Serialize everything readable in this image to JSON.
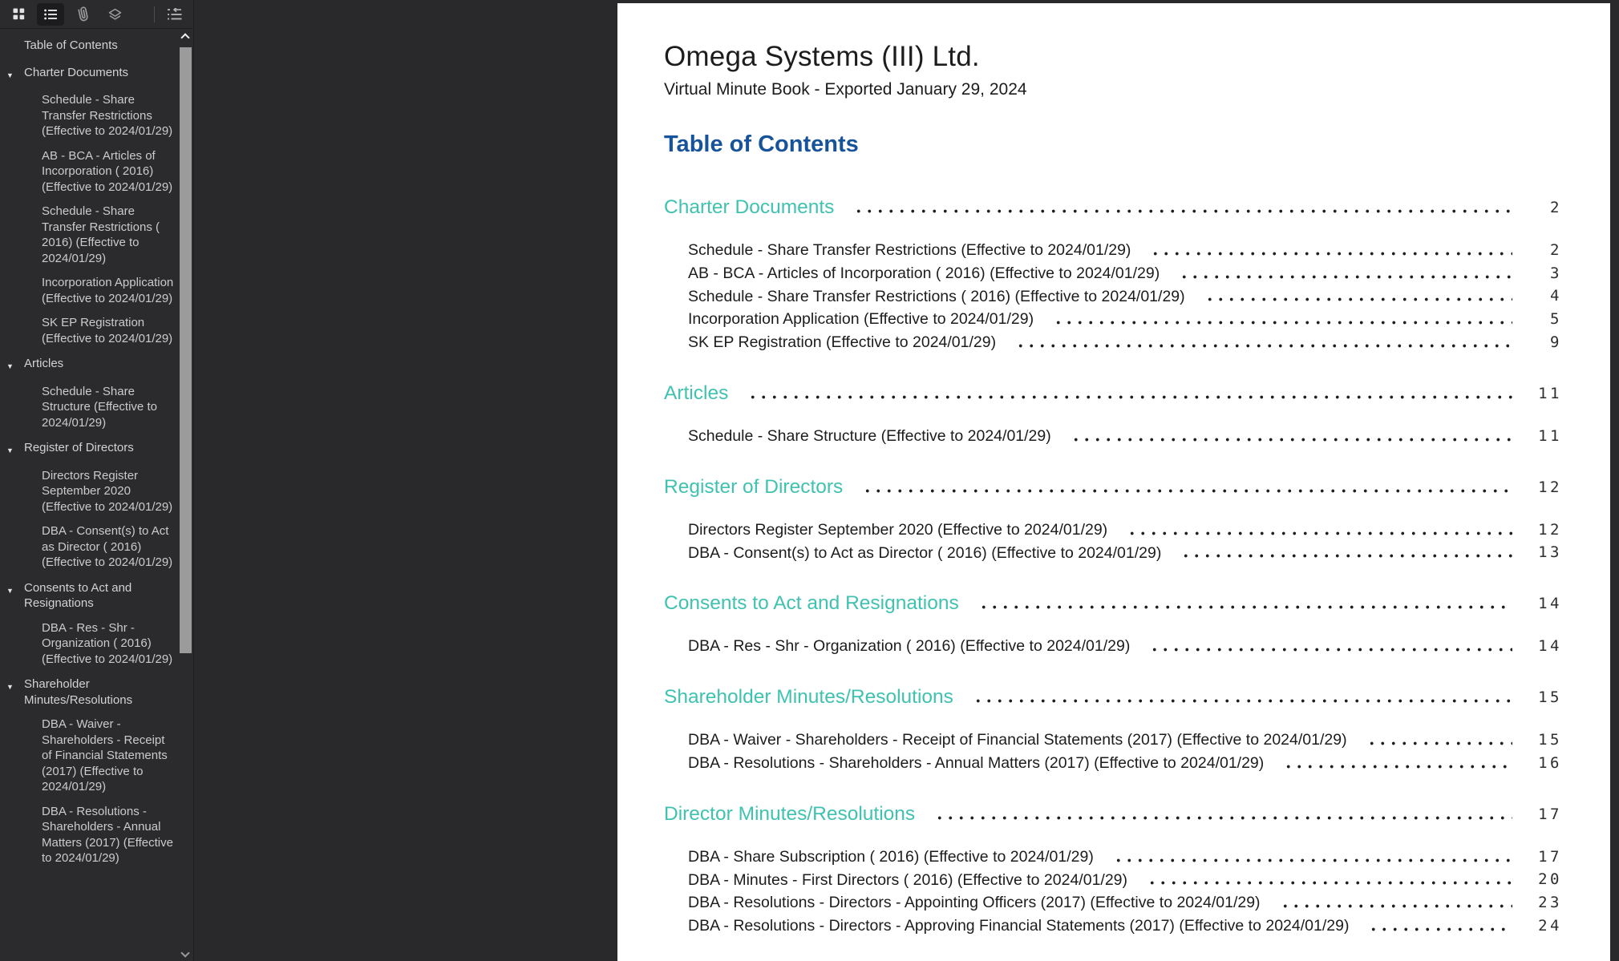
{
  "toolbar": {
    "icons": [
      {
        "name": "thumbnails-grid-icon"
      },
      {
        "name": "table-of-contents-icon",
        "active": true
      },
      {
        "name": "attachments-paperclip-icon"
      },
      {
        "name": "layers-icon"
      },
      {
        "name": "collapse-panel-icon"
      }
    ]
  },
  "sidebar": {
    "root": "Table of Contents",
    "sections": [
      {
        "label": "Charter Documents",
        "children": [
          "Schedule - Share Transfer Restrictions (Effective to 2024/01/29)",
          "AB - BCA - Articles of Incorporation ( 2016) (Effective to 2024/01/29)",
          "Schedule - Share Transfer Restrictions ( 2016) (Effective to 2024/01/29)",
          "Incorporation Application (Effective to 2024/01/29)",
          "SK EP Registration (Effective to 2024/01/29)"
        ]
      },
      {
        "label": "Articles",
        "children": [
          "Schedule - Share Structure (Effective to 2024/01/29)"
        ]
      },
      {
        "label": "Register of Directors",
        "children": [
          "Directors Register September 2020 (Effective to 2024/01/29)",
          "DBA - Consent(s) to Act as Director ( 2016) (Effective to 2024/01/29)"
        ]
      },
      {
        "label": "Consents to Act and Resignations",
        "children": [
          "DBA - Res - Shr - Organization ( 2016) (Effective to 2024/01/29)"
        ]
      },
      {
        "label": "Shareholder Minutes/Resolutions",
        "children": [
          "DBA - Waiver - Shareholders - Receipt of Financial Statements (2017) (Effective to 2024/01/29)",
          "DBA - Resolutions - Shareholders - Annual Matters (2017) (Effective to 2024/01/29)"
        ]
      }
    ]
  },
  "document": {
    "title": "Omega Systems (III) Ltd.",
    "subtitle": "Virtual Minute Book - Exported January 29, 2024",
    "toc_heading": "Table of Contents",
    "sections": [
      {
        "label": "Charter Documents",
        "page": "2",
        "entries": [
          {
            "label": "Schedule - Share Transfer Restrictions (Effective to 2024/01/29)",
            "page": "2"
          },
          {
            "label": "AB - BCA - Articles of Incorporation ( 2016) (Effective to 2024/01/29)",
            "page": "3"
          },
          {
            "label": "Schedule - Share Transfer Restrictions ( 2016) (Effective to 2024/01/29)",
            "page": "4"
          },
          {
            "label": "Incorporation Application (Effective to 2024/01/29)",
            "page": "5"
          },
          {
            "label": "SK EP Registration (Effective to 2024/01/29)",
            "page": "9"
          }
        ]
      },
      {
        "label": "Articles",
        "page": "11",
        "entries": [
          {
            "label": "Schedule - Share Structure (Effective to 2024/01/29)",
            "page": "11"
          }
        ]
      },
      {
        "label": "Register of Directors",
        "page": "12",
        "entries": [
          {
            "label": "Directors Register September 2020 (Effective to 2024/01/29)",
            "page": "12"
          },
          {
            "label": "DBA - Consent(s) to Act as Director ( 2016) (Effective to 2024/01/29)",
            "page": "13"
          }
        ]
      },
      {
        "label": "Consents to Act and Resignations",
        "page": "14",
        "entries": [
          {
            "label": "DBA - Res - Shr - Organization ( 2016) (Effective to 2024/01/29)",
            "page": "14"
          }
        ]
      },
      {
        "label": "Shareholder Minutes/Resolutions",
        "page": "15",
        "entries": [
          {
            "label": "DBA - Waiver - Shareholders - Receipt of Financial Statements (2017) (Effective to 2024/01/29)",
            "page": "15"
          },
          {
            "label": "DBA - Resolutions - Shareholders - Annual Matters (2017) (Effective to 2024/01/29)",
            "page": "16"
          }
        ]
      },
      {
        "label": "Director Minutes/Resolutions",
        "page": "17",
        "entries": [
          {
            "label": "DBA - Share Subscription ( 2016) (Effective to 2024/01/29)",
            "page": "17"
          },
          {
            "label": "DBA - Minutes - First Directors ( 2016) (Effective to 2024/01/29)",
            "page": "20"
          },
          {
            "label": "DBA - Resolutions - Directors - Appointing Officers (2017) (Effective to 2024/01/29)",
            "page": "23"
          },
          {
            "label": "DBA - Resolutions - Directors - Approving Financial Statements (2017) (Effective to 2024/01/29)",
            "page": "24"
          }
        ]
      }
    ]
  },
  "colors": {
    "section_teal": "#40c2b0",
    "heading_blue": "#17539b",
    "page_bg": "#ffffff",
    "chrome_bg": "#2b2b2e"
  }
}
